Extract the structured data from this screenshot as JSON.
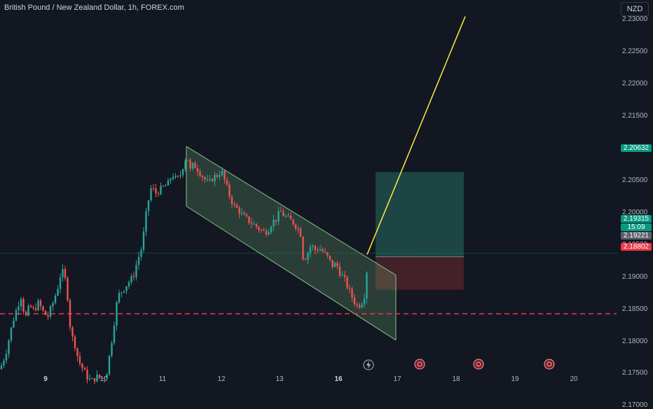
{
  "title": "British Pound / New Zealand Dollar, 1h, FOREX.com",
  "currency": "NZD",
  "colors": {
    "background": "#131722",
    "up": "#26a69a",
    "down": "#ef5350",
    "channel": "#81c784",
    "target_line": "#ffeb3b",
    "support_line": "#f23645",
    "profit_zone": "#1e4d4a",
    "loss_zone": "#4a2129"
  },
  "chart_data": {
    "type": "candlestick",
    "instrument": "GBP/NZD",
    "timeframe": "1h",
    "ylim": [
      2.1655,
      2.2325
    ],
    "y_ticks": [
      "2.23000",
      "2.22500",
      "2.22000",
      "2.21500",
      "2.21000",
      "2.20500",
      "2.20000",
      "2.19500",
      "2.19000",
      "2.18500",
      "2.18000",
      "2.17500",
      "2.17000"
    ],
    "x_ticks": [
      {
        "label": "9",
        "bold": true
      },
      {
        "label": "10",
        "bold": false
      },
      {
        "label": "11",
        "bold": false
      },
      {
        "label": "12",
        "bold": false
      },
      {
        "label": "13",
        "bold": false
      },
      {
        "label": "16",
        "bold": true
      },
      {
        "label": "17",
        "bold": false
      },
      {
        "label": "18",
        "bold": false
      },
      {
        "label": "19",
        "bold": false
      },
      {
        "label": "20",
        "bold": false
      }
    ],
    "price_path": [
      [
        0,
        2.1757
      ],
      [
        8,
        2.178
      ],
      [
        18,
        2.183
      ],
      [
        25,
        2.1855
      ],
      [
        30,
        2.187
      ],
      [
        36,
        2.1835
      ],
      [
        42,
        2.1855
      ],
      [
        48,
        2.1848
      ],
      [
        55,
        2.186
      ],
      [
        62,
        2.1845
      ],
      [
        68,
        2.1838
      ],
      [
        75,
        2.1858
      ],
      [
        82,
        2.1882
      ],
      [
        88,
        2.1912
      ],
      [
        94,
        2.1893
      ],
      [
        98,
        2.1855
      ],
      [
        101,
        2.181
      ],
      [
        106,
        2.18
      ],
      [
        112,
        2.177
      ],
      [
        118,
        2.1758
      ],
      [
        124,
        2.1745
      ],
      [
        130,
        2.1738
      ],
      [
        138,
        2.1745
      ],
      [
        146,
        2.1742
      ],
      [
        152,
        2.175
      ],
      [
        158,
        2.179
      ],
      [
        163,
        2.183
      ],
      [
        168,
        2.187
      ],
      [
        175,
        2.188
      ],
      [
        182,
        2.189
      ],
      [
        190,
        2.19
      ],
      [
        196,
        2.1925
      ],
      [
        202,
        2.1945
      ],
      [
        206,
        2.1975
      ],
      [
        210,
        2.201
      ],
      [
        216,
        2.204
      ],
      [
        222,
        2.203
      ],
      [
        228,
        2.2035
      ],
      [
        234,
        2.204
      ],
      [
        240,
        2.2045
      ],
      [
        246,
        2.206
      ],
      [
        252,
        2.205
      ],
      [
        258,
        2.206
      ],
      [
        263,
        2.208
      ],
      [
        267,
        2.209
      ],
      [
        271,
        2.2065
      ],
      [
        276,
        2.2075
      ],
      [
        282,
        2.2068
      ],
      [
        287,
        2.206
      ],
      [
        292,
        2.2052
      ],
      [
        298,
        2.2045
      ],
      [
        304,
        2.2055
      ],
      [
        310,
        2.2058
      ],
      [
        316,
        2.2065
      ],
      [
        322,
        2.2045
      ],
      [
        328,
        2.2025
      ],
      [
        334,
        2.201
      ],
      [
        340,
        2.2005
      ],
      [
        346,
        2.1995
      ],
      [
        352,
        2.199
      ],
      [
        358,
        2.1985
      ],
      [
        364,
        2.198
      ],
      [
        370,
        2.1975
      ],
      [
        376,
        2.197
      ],
      [
        382,
        2.1972
      ],
      [
        388,
        2.1985
      ],
      [
        394,
        2.199
      ],
      [
        400,
        2.2002
      ],
      [
        406,
        2.1995
      ],
      [
        412,
        2.199
      ],
      [
        418,
        2.1985
      ],
      [
        424,
        2.1978
      ],
      [
        430,
        2.1965
      ],
      [
        433,
        2.1925
      ],
      [
        438,
        2.1935
      ],
      [
        444,
        2.195
      ],
      [
        450,
        2.1942
      ],
      [
        456,
        2.1945
      ],
      [
        462,
        2.1938
      ],
      [
        468,
        2.193
      ],
      [
        474,
        2.1918
      ],
      [
        480,
        2.192
      ],
      [
        486,
        2.1905
      ],
      [
        492,
        2.1895
      ],
      [
        498,
        2.188
      ],
      [
        504,
        2.1865
      ],
      [
        510,
        2.1855
      ],
      [
        516,
        2.186
      ],
      [
        520,
        2.1872
      ],
      [
        524,
        2.1915
      ],
      [
        526,
        2.19315
      ]
    ],
    "channel": {
      "upper": [
        {
          "day": "11",
          "price": 2.2103
        },
        {
          "day": "17",
          "price": 2.1903
        }
      ],
      "lower": [
        {
          "day": "11",
          "price": 2.201
        },
        {
          "day": "17",
          "price": 2.1802
        }
      ]
    },
    "projection_line": {
      "from_price": 2.1935,
      "to_price": 2.2305
    },
    "support_level": 2.1843,
    "position": {
      "entry": 2.19315,
      "target": 2.20632,
      "stop": 2.18802
    },
    "price_labels": {
      "target": "2.20632",
      "current": "2.19315",
      "countdown": "15:09",
      "previous": "2.19221",
      "stop": "2.18802"
    }
  }
}
